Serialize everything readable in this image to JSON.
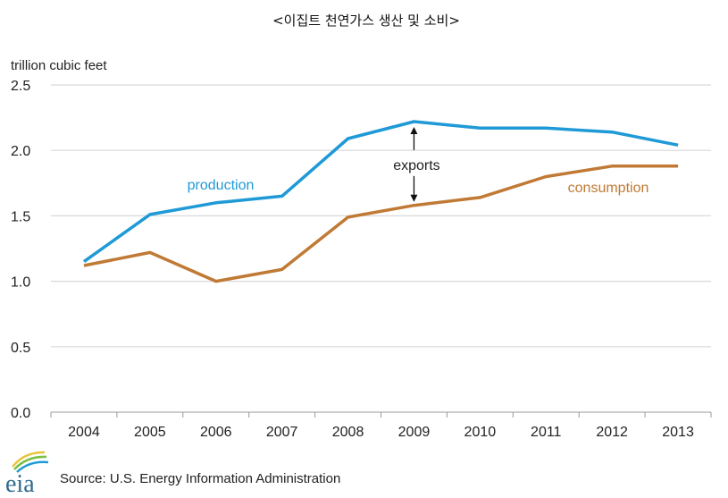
{
  "chart_data": {
    "type": "line",
    "title": "<이집트 천연가스 생산 및 소비>",
    "ylabel": "trillion cubic feet",
    "xlabel": "",
    "ylim": [
      0,
      2.5
    ],
    "yticks": [
      "0.0",
      "0.5",
      "1.0",
      "1.5",
      "2.0",
      "2.5"
    ],
    "ytick_values": [
      0,
      0.5,
      1.0,
      1.5,
      2.0,
      2.5
    ],
    "categories": [
      "2004",
      "2005",
      "2006",
      "2007",
      "2008",
      "2009",
      "2010",
      "2011",
      "2012",
      "2013"
    ],
    "grid": true,
    "series": [
      {
        "name": "production",
        "color": "#1f9ad6",
        "values": [
          1.15,
          1.51,
          1.6,
          1.65,
          2.09,
          2.22,
          2.17,
          2.17,
          2.14,
          2.04
        ]
      },
      {
        "name": "consumption",
        "color": "#c07a35",
        "values": [
          1.12,
          1.22,
          1.0,
          1.09,
          1.49,
          1.58,
          1.64,
          1.8,
          1.88,
          1.88
        ]
      }
    ],
    "annotations": [
      {
        "text": "exports",
        "category": "2009",
        "type": "double-arrow-between-series"
      }
    ]
  },
  "footer": {
    "logo_text": "eia",
    "source": "Source: U.S. Energy Information Administration"
  }
}
